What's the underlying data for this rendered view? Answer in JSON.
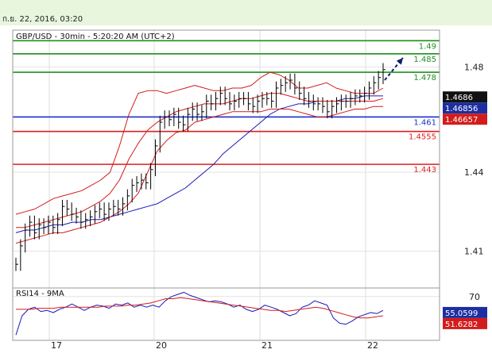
{
  "header": {
    "timestamp": "ก.ย. 22, 2016, 03:20"
  },
  "chart_data": [
    {
      "type": "line",
      "title": "GBP/USD - 30min - 5:20:20 AM (UTC+2)",
      "ylim": [
        1.396,
        1.494
      ],
      "yticks": [
        {
          "value": 1.48,
          "label": "1.48"
        },
        {
          "value": 1.44,
          "label": "1.44"
        },
        {
          "value": 1.41,
          "label": "1.41"
        }
      ],
      "xticks": [
        "17",
        "20",
        "21",
        "22"
      ],
      "grid": true,
      "levels": [
        {
          "value": 1.49,
          "label": "1.49",
          "role": "resistance"
        },
        {
          "value": 1.485,
          "label": "1.485",
          "role": "resistance"
        },
        {
          "value": 1.478,
          "label": "1.478",
          "role": "resistance"
        },
        {
          "value": 1.461,
          "label": "1.461",
          "role": "pivot"
        },
        {
          "value": 1.4555,
          "label": "1.4555",
          "role": "support"
        },
        {
          "value": 1.443,
          "label": "1.443",
          "role": "support"
        }
      ],
      "price_tags": [
        {
          "value": 1.4686,
          "label": "1.4686",
          "color": "#111111"
        },
        {
          "value": 1.46856,
          "label": "1.46856",
          "color": "#1c2ea0"
        },
        {
          "value": 1.46657,
          "label": "1.46657",
          "color": "#d21c1c"
        }
      ],
      "series": [
        {
          "name": "price",
          "color": "#000000",
          "values": [
            1.405,
            1.412,
            1.418,
            1.421,
            1.417,
            1.42,
            1.419,
            1.421,
            1.419,
            1.422,
            1.427,
            1.426,
            1.424,
            1.423,
            1.421,
            1.422,
            1.423,
            1.425,
            1.426,
            1.424,
            1.426,
            1.427,
            1.426,
            1.428,
            1.431,
            1.435,
            1.436,
            1.437,
            1.436,
            1.441,
            1.45,
            1.459,
            1.461,
            1.46,
            1.462,
            1.459,
            1.458,
            1.462,
            1.464,
            1.462,
            1.463,
            1.467,
            1.466,
            1.468,
            1.47,
            1.468,
            1.466,
            1.467,
            1.468,
            1.468,
            1.466,
            1.465,
            1.467,
            1.468,
            1.468,
            1.467,
            1.472,
            1.473,
            1.474,
            1.475,
            1.472,
            1.47,
            1.468,
            1.467,
            1.466,
            1.466,
            1.465,
            1.463,
            1.465,
            1.466,
            1.467,
            1.467,
            1.468,
            1.469,
            1.469,
            1.47,
            1.472,
            1.474,
            1.476,
            1.479
          ]
        },
        {
          "name": "ma_blue",
          "color": "#1a1ab8",
          "values": [
            1.417,
            1.418,
            1.418,
            1.419,
            1.42,
            1.42,
            1.421,
            1.421,
            1.422,
            1.422,
            1.423,
            1.424,
            1.425,
            1.426,
            1.427,
            1.428,
            1.43,
            1.432,
            1.434,
            1.437,
            1.44,
            1.443,
            1.447,
            1.45,
            1.453,
            1.456,
            1.459,
            1.462,
            1.464,
            1.465,
            1.466,
            1.466,
            1.467,
            1.467,
            1.467,
            1.468,
            1.468,
            1.469,
            1.469,
            1.469
          ]
        },
        {
          "name": "bb_upper",
          "color": "#d21c1c",
          "values": [
            1.424,
            1.425,
            1.426,
            1.428,
            1.43,
            1.431,
            1.432,
            1.433,
            1.435,
            1.437,
            1.44,
            1.45,
            1.462,
            1.47,
            1.471,
            1.471,
            1.47,
            1.471,
            1.472,
            1.473,
            1.472,
            1.471,
            1.471,
            1.472,
            1.472,
            1.473,
            1.476,
            1.478,
            1.477,
            1.475,
            1.472,
            1.472,
            1.473,
            1.474,
            1.472,
            1.471,
            1.47,
            1.47,
            1.47,
            1.472
          ]
        },
        {
          "name": "bb_lower",
          "color": "#d21c1c",
          "values": [
            1.413,
            1.414,
            1.415,
            1.416,
            1.417,
            1.417,
            1.418,
            1.419,
            1.42,
            1.421,
            1.423,
            1.425,
            1.428,
            1.432,
            1.44,
            1.448,
            1.452,
            1.455,
            1.456,
            1.459,
            1.46,
            1.461,
            1.462,
            1.463,
            1.463,
            1.463,
            1.463,
            1.464,
            1.464,
            1.464,
            1.463,
            1.462,
            1.461,
            1.461,
            1.462,
            1.463,
            1.464,
            1.464,
            1.465,
            1.465
          ]
        },
        {
          "name": "bb_mid",
          "color": "#d21c1c",
          "values": [
            1.419,
            1.419,
            1.42,
            1.421,
            1.422,
            1.423,
            1.424,
            1.425,
            1.427,
            1.429,
            1.432,
            1.437,
            1.445,
            1.451,
            1.456,
            1.459,
            1.461,
            1.463,
            1.464,
            1.465,
            1.466,
            1.466,
            1.466,
            1.467,
            1.468,
            1.468,
            1.469,
            1.47,
            1.47,
            1.469,
            1.468,
            1.467,
            1.467,
            1.467,
            1.467,
            1.467,
            1.467,
            1.467,
            1.467,
            1.468
          ]
        }
      ]
    },
    {
      "type": "line",
      "title": "RSI14 - 9MA",
      "ylim": [
        29,
        78
      ],
      "yticks": [
        {
          "value": 70,
          "label": "70"
        }
      ],
      "xticks": [
        "17",
        "20",
        "21",
        "22"
      ],
      "price_tags": [
        {
          "value": 55.0599,
          "label": "55.0599",
          "color": "#1c2ea0"
        },
        {
          "value": 51.6282,
          "label": "51.6282",
          "color": "#d21c1c"
        }
      ],
      "series": [
        {
          "name": "rsi",
          "color": "#1a1ab8",
          "values": [
            34,
            52,
            58,
            60,
            56,
            57,
            55,
            58,
            60,
            63,
            60,
            57,
            60,
            62,
            61,
            59,
            63,
            62,
            64,
            60,
            62,
            60,
            62,
            60,
            66,
            70,
            72,
            74,
            71,
            69,
            67,
            65,
            66,
            65,
            63,
            60,
            62,
            58,
            56,
            58,
            62,
            60,
            58,
            55,
            52,
            54,
            60,
            62,
            66,
            64,
            62,
            50,
            45,
            44,
            47,
            51,
            53,
            55,
            54,
            57
          ]
        },
        {
          "name": "rsi_ma",
          "color": "#d21c1c",
          "values": [
            58,
            58,
            58,
            59,
            59,
            59,
            60,
            60,
            60,
            60,
            60,
            60,
            61,
            61,
            61,
            62,
            62,
            63,
            64,
            66,
            68,
            68,
            69,
            68,
            67,
            66,
            65,
            64,
            63,
            62,
            61,
            60,
            59,
            58,
            57,
            57,
            56,
            57,
            58,
            59,
            60,
            59,
            57,
            55,
            53,
            51,
            50,
            50,
            51,
            52
          ]
        }
      ]
    }
  ]
}
